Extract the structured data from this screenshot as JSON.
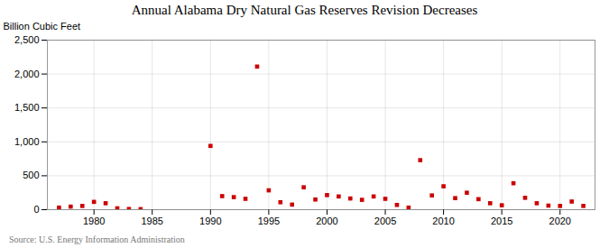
{
  "chart_data": {
    "type": "scatter",
    "title": "Annual Alabama Dry Natural Gas Reserves Revision Decreases",
    "ylabel": "Billion Cubic Feet",
    "annotations": [
      "Source: U.S. Energy Information Administration"
    ],
    "x": [
      1977,
      1978,
      1979,
      1980,
      1981,
      1982,
      1983,
      1984,
      1990,
      1991,
      1992,
      1993,
      1994,
      1995,
      1996,
      1997,
      1998,
      1999,
      2000,
      2001,
      2002,
      2003,
      2004,
      2005,
      2006,
      2007,
      2008,
      2009,
      2010,
      2011,
      2012,
      2013,
      2014,
      2015,
      2016,
      2017,
      2018,
      2019,
      2020,
      2021,
      2022
    ],
    "values": [
      30,
      45,
      55,
      115,
      95,
      20,
      10,
      8,
      940,
      200,
      185,
      160,
      2110,
      285,
      110,
      75,
      330,
      150,
      215,
      195,
      165,
      145,
      195,
      160,
      70,
      30,
      730,
      210,
      345,
      170,
      250,
      155,
      95,
      65,
      390,
      175,
      95,
      60,
      55,
      120,
      55
    ],
    "color": "#cc0000",
    "marker": "square",
    "xlim": [
      1976,
      2023
    ],
    "xticks": [
      1980,
      1985,
      1990,
      1995,
      2000,
      2005,
      2010,
      2015,
      2020
    ],
    "ylim": [
      0,
      2500
    ],
    "yticks": [
      0,
      500,
      {
        "value": 1000,
        "label": "1,000"
      },
      {
        "value": 1500,
        "label": "1,500"
      },
      {
        "value": 2000,
        "label": "2,000"
      },
      {
        "value": 2500,
        "label": "2,500"
      }
    ],
    "grid": true
  }
}
